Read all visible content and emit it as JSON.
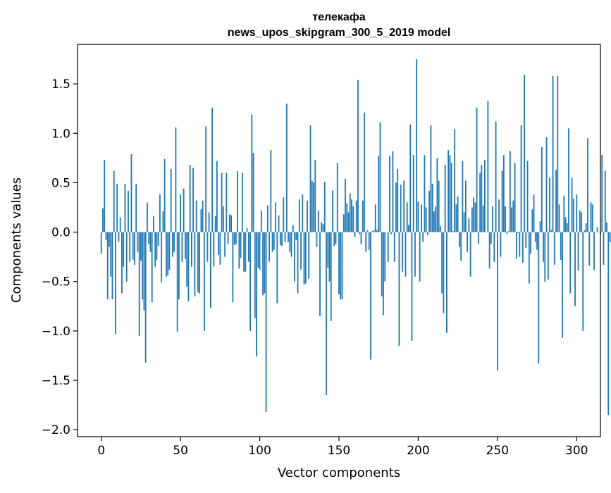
{
  "chart_data": {
    "type": "bar",
    "title_line1": "телекафа",
    "title_line2": "news_upos_skipgram_300_5_2019 model",
    "xlabel": "Vector components",
    "ylabel": "Components values",
    "xlim": [
      -15,
      315
    ],
    "ylim": [
      -2.07,
      1.9
    ],
    "xticks": [
      0,
      50,
      100,
      150,
      200,
      250,
      300
    ],
    "xtick_labels": [
      "0",
      "50",
      "100",
      "150",
      "200",
      "250",
      "300"
    ],
    "yticks": [
      -2.0,
      -1.5,
      -1.0,
      -0.5,
      0.0,
      0.5,
      1.0,
      1.5
    ],
    "ytick_labels": [
      "−2.0",
      "−1.5",
      "−1.0",
      "−0.5",
      "0.0",
      "0.5",
      "1.0",
      "1.5"
    ],
    "bar_color": "#1f77b4",
    "grid": false,
    "values": [
      -0.22,
      0.24,
      0.73,
      -0.08,
      -0.68,
      -0.15,
      -0.45,
      -0.68,
      0.62,
      -1.03,
      0.49,
      -0.1,
      0.15,
      -0.62,
      -0.35,
      0.49,
      -0.5,
      0.42,
      -0.3,
      0.79,
      -0.28,
      -0.33,
      0.49,
      -0.2,
      -1.05,
      -0.29,
      -0.68,
      -0.79,
      -1.32,
      0.3,
      -0.12,
      -0.2,
      -0.71,
      0.16,
      -0.35,
      -0.28,
      -0.14,
      0.38,
      -0.51,
      0.21,
      0.74,
      -0.45,
      -0.44,
      -0.38,
      0.64,
      -0.25,
      -0.2,
      1.06,
      -1.01,
      -0.68,
      0.38,
      -0.3,
      0.44,
      -0.27,
      -0.55,
      -0.7,
      0.68,
      -0.35,
      0.65,
      -0.65,
      0.32,
      -0.61,
      -0.62,
      0.23,
      0.32,
      -1.0,
      1.07,
      -0.3,
      0.2,
      -0.77,
      1.26,
      -0.35,
      0.16,
      0.72,
      -0.23,
      -0.33,
      0.6,
      0.26,
      -0.25,
      0.6,
      -0.12,
      0.18,
      0.17,
      -0.71,
      -0.13,
      -0.12,
      0.62,
      -0.37,
      -0.26,
      0.6,
      -0.4,
      -0.4,
      0.04,
      -0.3,
      -1.0,
      1.19,
      0.8,
      -0.87,
      -1.26,
      -0.36,
      -0.38,
      0.22,
      -0.64,
      -0.62,
      -1.82,
      0.27,
      -0.3,
      0.83,
      -0.2,
      -0.18,
      0.3,
      -0.72,
      0.17,
      -0.13,
      -0.14,
      0.35,
      -0.1,
      1.3,
      -0.1,
      -0.2,
      -0.25,
      0.07,
      -0.5,
      -0.08,
      -0.62,
      0.33,
      -0.38,
      0.38,
      -0.53,
      -0.52,
      0.32,
      -0.47,
      1.08,
      0.52,
      0.5,
      0.73,
      -0.15,
      0.22,
      -0.85,
      0.1,
      0.08,
      0.51,
      -1.65,
      -0.36,
      -0.5,
      -0.9,
      0.42,
      -0.14,
      -0.12,
      0.7,
      -0.63,
      -0.68,
      -0.68,
      0.18,
      0.54,
      0.29,
      0.2,
      0.39,
      0.33,
      0.26,
      -0.05,
      0.32,
      1.54,
      -0.02,
      -0.12,
      0.32,
      1.21,
      -0.2,
      0.02,
      -0.18,
      -1.29,
      0.01,
      0.02,
      0.28,
      0.02,
      0.77,
      1.11,
      -0.65,
      -0.84,
      -0.5,
      0.0,
      -0.3,
      0.77,
      -0.02,
      0.82,
      -0.3,
      0.5,
      0.64,
      -1.15,
      0.48,
      -0.4,
      0.52,
      -0.45,
      0.3,
      0.07,
      1.09,
      -1.1,
      0.78,
      -0.45,
      1.75,
      0.31,
      -0.5,
      0.28,
      -0.1,
      0.78,
      0.25,
      -0.03,
      0.42,
      1.08,
      0.49,
      0.21,
      0.26,
      0.75,
      0.52,
      0.06,
      -0.62,
      -0.82,
      0.68,
      -1.02,
      0.83,
      0.78,
      0.7,
      0.01,
      1.04,
      0.28,
      0.36,
      -0.15,
      -0.29,
      0.72,
      0.2,
      0.52,
      -0.2,
      0.14,
      -0.45,
      0.25,
      0.35,
      0.3,
      1.26,
      -0.12,
      0.6,
      0.68,
      0.27,
      0.73,
      0.0,
      1.33,
      -0.37,
      -0.12,
      0.26,
      -0.3,
      1.12,
      -1.4,
      0.33,
      -0.25,
      0.62,
      0.78,
      0.26,
      -0.02,
      0.01,
      0.82,
      0.25,
      0.32,
      0.7,
      -0.27,
      -0.01,
      -0.25,
      1.08,
      -0.31,
      1.59,
      -0.16,
      0.72,
      -0.52,
      -0.22,
      0.23,
      0.38,
      -0.1,
      -0.18,
      -1.33,
      0.11,
      0.86,
      -0.3,
      -0.5,
      0.96,
      -0.48,
      0.55,
      0.02,
      1.58,
      -0.33,
      0.63,
      1.58,
      0.28,
      -0.28,
      -1.07,
      0.37,
      0.15,
      0.09,
      1.05,
      -0.62,
      0.55,
      0.34,
      -0.75,
      0.38,
      -0.39,
      0.22,
      0.2,
      -1.0,
      0.02,
      0.09,
      0.95,
      -0.34,
      0.3,
      0.28,
      -0.38,
      0.0,
      0.05,
      0.0,
      -0.02,
      0.78,
      -0.33,
      0.62,
      0.1,
      -1.85,
      -0.1,
      -0.12,
      0.82
    ]
  }
}
